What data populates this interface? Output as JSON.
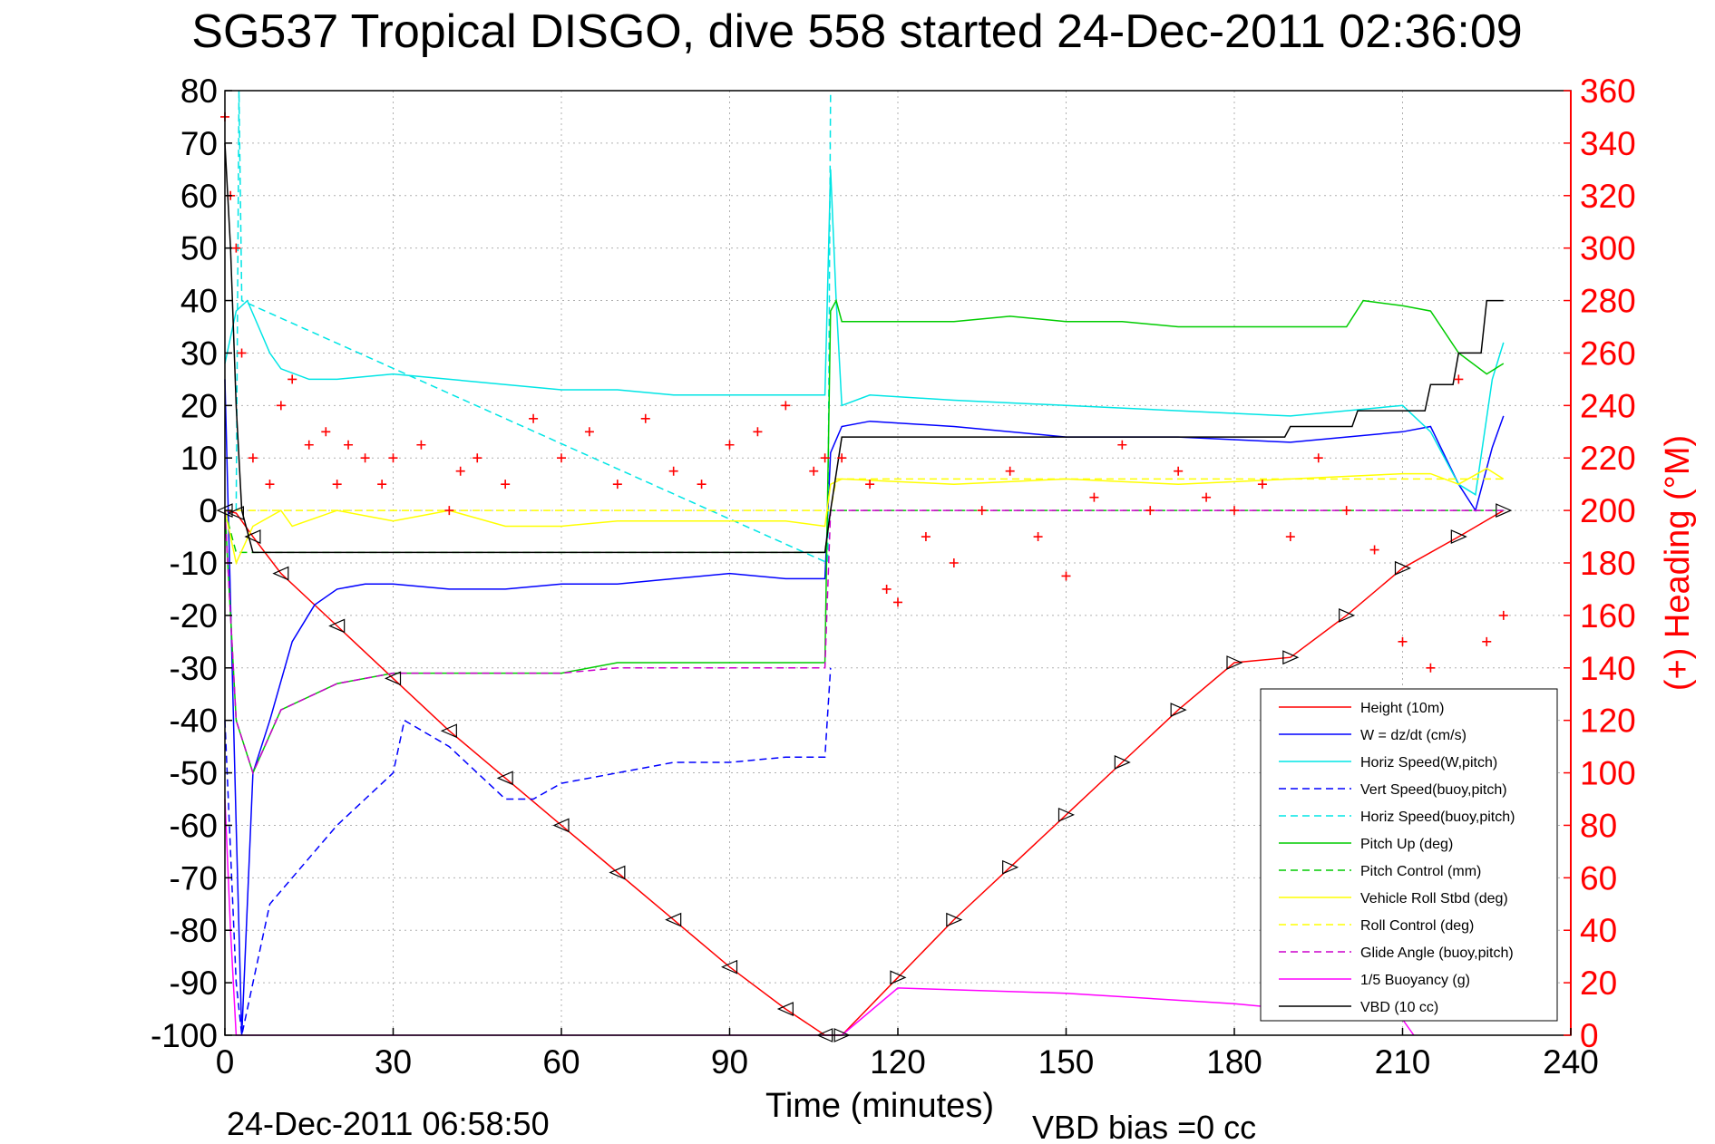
{
  "chart_data": {
    "type": "line",
    "title": "SG537 Tropical DISGO, dive 558 started 24-Dec-2011 02:36:09",
    "xlabel": "Time (minutes)",
    "ylabel": "",
    "y2label": "(+) Heading (°M)",
    "footer_left": "24-Dec-2011 06:58:50",
    "footer_right": "VBD bias =0 cc",
    "xlim": [
      0,
      240
    ],
    "ylim": [
      -100,
      80
    ],
    "y2lim": [
      0,
      360
    ],
    "xticks": [
      "0",
      "30",
      "60",
      "90",
      "120",
      "150",
      "180",
      "210",
      "240"
    ],
    "yticks": [
      "80",
      "70",
      "60",
      "50",
      "40",
      "30",
      "20",
      "10",
      "0",
      "-10",
      "-20",
      "-30",
      "-40",
      "-50",
      "-60",
      "-70",
      "-80",
      "-90",
      "-100"
    ],
    "y2ticks": [
      "360",
      "340",
      "320",
      "300",
      "280",
      "260",
      "240",
      "220",
      "200",
      "180",
      "160",
      "140",
      "120",
      "100",
      "80",
      "60",
      "40",
      "20",
      "0"
    ],
    "grid": true,
    "legend_position": "bottom-right",
    "series": [
      {
        "name": "Height (10m)",
        "color": "#ff0000",
        "dash": false,
        "x": [
          0,
          2,
          5,
          10,
          20,
          30,
          40,
          50,
          60,
          70,
          80,
          90,
          100,
          107,
          110,
          120,
          130,
          140,
          150,
          160,
          170,
          180,
          190,
          200,
          210,
          220,
          228
        ],
        "y": [
          0,
          -0.5,
          -5,
          -12,
          -22,
          -32,
          -42,
          -51,
          -60,
          -69,
          -78,
          -87,
          -95,
          -100,
          -100,
          -89,
          -78,
          -68,
          -58,
          -48,
          -38,
          -29,
          -28,
          -20,
          -11,
          -5,
          0
        ]
      },
      {
        "name": "W = dz/dt (cm/s)",
        "color": "#0000ff",
        "dash": false,
        "x": [
          0,
          2,
          3,
          5,
          8,
          12,
          16,
          20,
          25,
          30,
          40,
          50,
          60,
          70,
          80,
          90,
          100,
          107,
          108,
          110,
          115,
          130,
          150,
          170,
          190,
          200,
          210,
          215,
          220,
          223,
          226,
          228
        ],
        "y": [
          25,
          -60,
          -100,
          -50,
          -40,
          -25,
          -18,
          -15,
          -14,
          -14,
          -15,
          -15,
          -14,
          -14,
          -13,
          -12,
          -13,
          -13,
          11,
          16,
          17,
          16,
          14,
          14,
          13,
          14,
          15,
          16,
          5,
          0,
          12,
          18
        ]
      },
      {
        "name": "Horiz Speed(W,pitch)",
        "color": "#00e5e5",
        "dash": false,
        "x": [
          0,
          2,
          4,
          6,
          8,
          10,
          15,
          20,
          30,
          40,
          50,
          60,
          70,
          80,
          90,
          100,
          107,
          108,
          109,
          110,
          115,
          130,
          150,
          170,
          190,
          200,
          210,
          215,
          220,
          223,
          226,
          228
        ],
        "y": [
          28,
          38,
          40,
          35,
          30,
          27,
          25,
          25,
          26,
          25,
          24,
          23,
          23,
          22,
          22,
          22,
          22,
          65,
          40,
          20,
          22,
          21,
          20,
          19,
          18,
          19,
          20,
          15,
          5,
          3,
          25,
          32
        ]
      },
      {
        "name": "Vert Speed(buoy,pitch)",
        "color": "#0000ff",
        "dash": true,
        "x": [
          0,
          2,
          3,
          5,
          8,
          12,
          16,
          20,
          25,
          30,
          32,
          40,
          50,
          55,
          60,
          70,
          80,
          90,
          100,
          107,
          108
        ],
        "y": [
          -40,
          -90,
          -100,
          -90,
          -75,
          -70,
          -65,
          -60,
          -55,
          -50,
          -40,
          -45,
          -55,
          -55,
          -52,
          -50,
          -48,
          -48,
          -47,
          -47,
          -30
        ]
      },
      {
        "name": "Horiz Speed(buoy,pitch)",
        "color": "#00e5e5",
        "dash": true,
        "x": [
          2,
          2.5,
          3,
          107.5,
          108
        ],
        "y": [
          0,
          80,
          40,
          -10,
          80
        ]
      },
      {
        "name": "Pitch Up (deg)",
        "color": "#00cc00",
        "dash": false,
        "x": [
          0,
          2,
          5,
          10,
          20,
          30,
          40,
          50,
          60,
          70,
          80,
          90,
          100,
          107,
          108,
          109,
          110,
          120,
          130,
          140,
          150,
          160,
          170,
          180,
          190,
          200,
          203,
          210,
          215,
          220,
          225,
          228
        ],
        "y": [
          0,
          -40,
          -50,
          -38,
          -33,
          -31,
          -31,
          -31,
          -31,
          -29,
          -29,
          -29,
          -29,
          -29,
          38,
          40,
          36,
          36,
          36,
          37,
          36,
          36,
          35,
          35,
          35,
          35,
          40,
          39,
          38,
          30,
          26,
          28
        ]
      },
      {
        "name": "Pitch Control (mm)",
        "color": "#00cc00",
        "dash": true,
        "x": [
          0,
          2,
          5,
          10,
          30,
          60,
          90,
          107,
          108,
          228
        ],
        "y": [
          0,
          -8,
          -8,
          -8,
          -8,
          -8,
          -8,
          -8,
          0,
          0
        ]
      },
      {
        "name": "Vehicle Roll Stbd (deg)",
        "color": "#ffff00",
        "dash": false,
        "x": [
          0,
          2,
          5,
          10,
          12,
          20,
          30,
          40,
          50,
          60,
          70,
          80,
          90,
          100,
          107,
          108,
          110,
          130,
          150,
          170,
          190,
          210,
          215,
          220,
          225,
          228
        ],
        "y": [
          0,
          -10,
          -3,
          0,
          -3,
          0,
          -2,
          0,
          -3,
          -3,
          -2,
          -2,
          -2,
          -2,
          -3,
          5,
          6,
          5,
          6,
          5,
          6,
          7,
          7,
          5,
          8,
          6
        ]
      },
      {
        "name": "Roll Control (deg)",
        "color": "#ffff00",
        "dash": true,
        "x": [
          0,
          108,
          109,
          228
        ],
        "y": [
          0,
          0,
          6,
          6
        ]
      },
      {
        "name": "Glide Angle (buoy,pitch)",
        "color": "#cc00cc",
        "dash": true,
        "x": [
          0,
          2,
          5,
          10,
          20,
          30,
          40,
          50,
          60,
          70,
          80,
          90,
          100,
          107,
          108,
          228
        ],
        "y": [
          0,
          -40,
          -50,
          -38,
          -33,
          -31,
          -31,
          -31,
          -31,
          -30,
          -30,
          -30,
          -30,
          -30,
          0,
          0
        ]
      },
      {
        "name": "1/5 Buoyancy (g)",
        "color": "#ff00ff",
        "dash": false,
        "x": [
          0,
          1,
          2,
          3,
          110,
          120,
          150,
          180,
          190,
          210,
          212
        ],
        "y": [
          -55,
          -80,
          -100,
          -100,
          -100,
          -91,
          -92,
          -94,
          -95,
          -97,
          -100
        ]
      },
      {
        "name": "VBD (10 cc)",
        "color": "#000000",
        "dash": false,
        "x": [
          0,
          1,
          2,
          3,
          5,
          107,
          108,
          110,
          189,
          190,
          201,
          202,
          214,
          215,
          219,
          220,
          224,
          225,
          228
        ],
        "y": [
          70,
          50,
          20,
          0,
          -8,
          -8,
          0,
          14,
          14,
          16,
          16,
          19,
          19,
          24,
          24,
          30,
          30,
          40,
          40
        ]
      }
    ],
    "heading": {
      "name": "(+) Heading",
      "color": "#ff0000",
      "x": [
        0,
        1,
        2,
        3,
        5,
        8,
        10,
        12,
        15,
        18,
        20,
        22,
        25,
        28,
        30,
        35,
        40,
        42,
        45,
        50,
        55,
        60,
        65,
        70,
        75,
        80,
        85,
        90,
        95,
        100,
        105,
        107,
        110,
        115,
        118,
        120,
        125,
        130,
        135,
        140,
        145,
        150,
        155,
        160,
        165,
        170,
        175,
        180,
        185,
        190,
        195,
        200,
        205,
        210,
        215,
        220,
        225,
        228
      ],
      "y": [
        350,
        320,
        300,
        260,
        220,
        210,
        240,
        250,
        225,
        230,
        210,
        225,
        220,
        210,
        220,
        225,
        200,
        215,
        220,
        210,
        235,
        220,
        230,
        210,
        235,
        215,
        210,
        225,
        230,
        240,
        215,
        220,
        220,
        210,
        170,
        165,
        190,
        180,
        200,
        215,
        190,
        175,
        205,
        225,
        200,
        215,
        205,
        200,
        210,
        190,
        220,
        200,
        185,
        150,
        140,
        250,
        150,
        160
      ]
    }
  }
}
